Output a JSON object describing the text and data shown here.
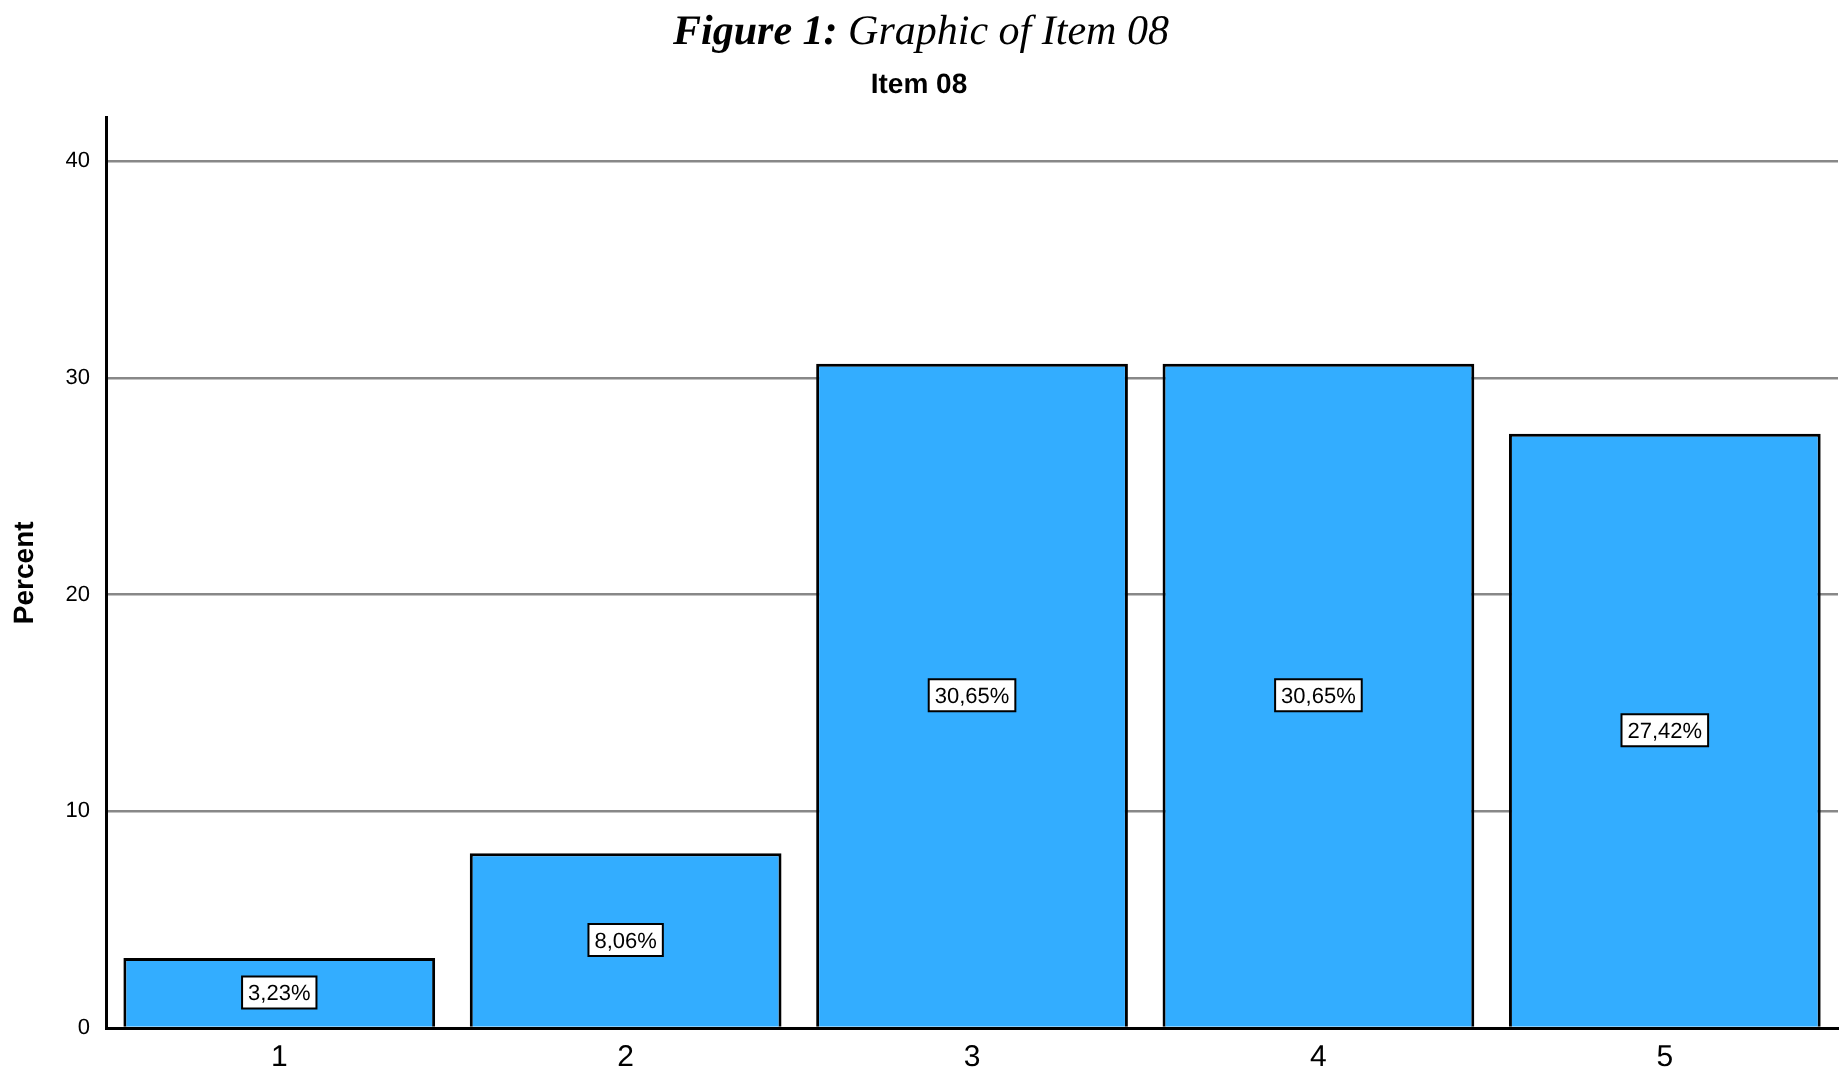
{
  "chart_data": {
    "type": "bar",
    "title": "Figure 1: Graphic of Item 08",
    "subtitle": "Item 08",
    "ylabel": "Percent",
    "categories": [
      "1",
      "2",
      "3",
      "4",
      "5"
    ],
    "values": [
      3.23,
      8.06,
      30.65,
      30.65,
      27.42
    ],
    "value_labels": [
      "3,23%",
      "8,06%",
      "30,65%",
      "30,65%",
      "27,42%"
    ],
    "color": "#33adff",
    "ylim": [
      0,
      42
    ],
    "yticks": [
      0,
      10,
      20,
      30,
      40
    ],
    "grid": "y",
    "legend": false
  }
}
